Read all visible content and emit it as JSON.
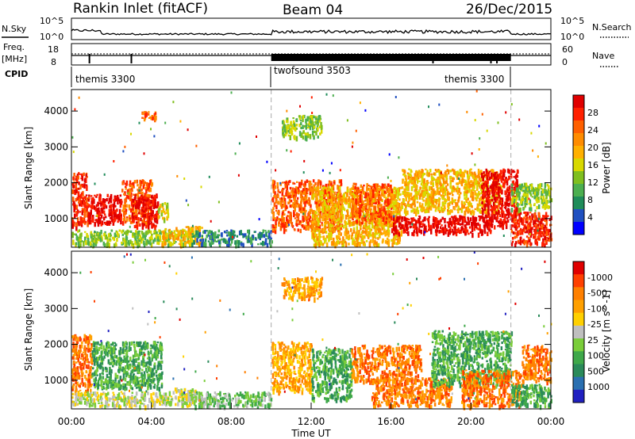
{
  "header": {
    "title": "Rankin Inlet (fitACF)",
    "beam": "Beam 04",
    "date": "26/Dec/2015"
  },
  "top_panels": {
    "nsky_label": "N.Sky",
    "nsearch_label": "N.Search",
    "nsky_ticks": [
      "10^5",
      "10^0"
    ],
    "nsky_right_ticks": [
      "10^5",
      "10^0"
    ],
    "freq_label": "Freq.",
    "freq_unit": "[MHz]",
    "freq_ticks": [
      "18",
      "8"
    ],
    "nave_label": "Nave",
    "nave_ticks": [
      "60",
      "0"
    ],
    "cpid_label": "CPID",
    "cpid_segments": [
      {
        "label": "themis 3300",
        "start_h": 0.0,
        "end_h": 10.0
      },
      {
        "label": "twofsound 3503",
        "start_h": 10.0,
        "end_h": 22.0
      },
      {
        "label": "themis 3300",
        "start_h": 22.0,
        "end_h": 24.0
      }
    ]
  },
  "chart_data": [
    {
      "type": "heatmap",
      "name": "power",
      "xlabel": "",
      "ylabel": "Slant Range [km]",
      "x_range_hours": [
        0,
        24
      ],
      "ylim": [
        200,
        4600
      ],
      "ytick_values": [
        1000,
        2000,
        3000,
        4000
      ],
      "ytick_labels": [
        "1000",
        "2000",
        "3000",
        "4000"
      ],
      "colorbar": {
        "label": "Power [dB]",
        "tick_labels": [
          "4",
          "8",
          "12",
          "16",
          "20",
          "24",
          "28"
        ],
        "colors": [
          "#0000ff",
          "#2050c0",
          "#1f8c5a",
          "#4caf50",
          "#7fbf1f",
          "#d8d800",
          "#ffb000",
          "#ff8c00",
          "#ff6000",
          "#ff2000",
          "#e00000"
        ]
      },
      "clusters": [
        {
          "x": [
            0.0,
            0.8
          ],
          "y": [
            800,
            2300
          ],
          "level": 9
        },
        {
          "x": [
            0.8,
            2.5
          ],
          "y": [
            900,
            1700
          ],
          "level": 10
        },
        {
          "x": [
            2.5,
            4.0
          ],
          "y": [
            900,
            2100
          ],
          "level": 8
        },
        {
          "x": [
            3.0,
            4.3
          ],
          "y": [
            800,
            1700
          ],
          "level": 10
        },
        {
          "x": [
            4.3,
            4.8
          ],
          "y": [
            1000,
            1500
          ],
          "level": 5
        },
        {
          "x": [
            0.0,
            6.0
          ],
          "y": [
            300,
            700
          ],
          "level": 4
        },
        {
          "x": [
            4.5,
            6.5
          ],
          "y": [
            300,
            800
          ],
          "level": 6
        },
        {
          "x": [
            6.0,
            10.0
          ],
          "y": [
            300,
            700
          ],
          "level": 2
        },
        {
          "x": [
            3.5,
            4.2
          ],
          "y": [
            3800,
            4000
          ],
          "level": 8
        },
        {
          "x": [
            10.0,
            13.5
          ],
          "y": [
            700,
            2100
          ],
          "level": 8
        },
        {
          "x": [
            10.5,
            12.5
          ],
          "y": [
            3300,
            3900
          ],
          "level": 4
        },
        {
          "x": [
            12.0,
            16.5
          ],
          "y": [
            300,
            1900
          ],
          "level": 6
        },
        {
          "x": [
            14.0,
            16.0
          ],
          "y": [
            900,
            2000
          ],
          "level": 8
        },
        {
          "x": [
            16.0,
            21.0
          ],
          "y": [
            600,
            1100
          ],
          "level": 10
        },
        {
          "x": [
            16.5,
            21.5
          ],
          "y": [
            1200,
            2400
          ],
          "level": 6
        },
        {
          "x": [
            20.5,
            22.3
          ],
          "y": [
            800,
            2400
          ],
          "level": 10
        },
        {
          "x": [
            22.0,
            24.0
          ],
          "y": [
            300,
            1200
          ],
          "level": 9
        },
        {
          "x": [
            22.0,
            24.0
          ],
          "y": [
            1300,
            2000
          ],
          "level": 4
        }
      ]
    },
    {
      "type": "heatmap",
      "name": "velocity",
      "xlabel": "Time UT",
      "ylabel": "Slant Range [km]",
      "x_range_hours": [
        0,
        24
      ],
      "ylim": [
        200,
        4600
      ],
      "xtick_values": [
        0,
        4,
        8,
        12,
        16,
        20,
        24
      ],
      "xtick_labels": [
        "00:00",
        "04:00",
        "08:00",
        "12:00",
        "16:00",
        "20:00",
        "00:00"
      ],
      "ytick_values": [
        1000,
        2000,
        3000,
        4000
      ],
      "ytick_labels": [
        "1000",
        "2000",
        "3000",
        "4000"
      ],
      "colorbar": {
        "label": "Velocity [m s^-1]",
        "tick_labels": [
          "1000",
          "500",
          "100",
          "25",
          "-25",
          "-100",
          "-500",
          "-1000"
        ],
        "colors": [
          "#2020c0",
          "#2a6fb0",
          "#2a8a5a",
          "#3fa84a",
          "#7acd3a",
          "#bfbfbf",
          "#ffd000",
          "#ffa000",
          "#ff8000",
          "#ff4000",
          "#e00000"
        ]
      },
      "clusters": [
        {
          "x": [
            0.0,
            1.0
          ],
          "y": [
            700,
            2300
          ],
          "level": 8
        },
        {
          "x": [
            1.0,
            4.5
          ],
          "y": [
            800,
            2100
          ],
          "level": 3
        },
        {
          "x": [
            0.0,
            5.0
          ],
          "y": [
            300,
            700
          ],
          "level": 5
        },
        {
          "x": [
            5.0,
            6.2
          ],
          "y": [
            300,
            800
          ],
          "level": 5
        },
        {
          "x": [
            6.0,
            10.0
          ],
          "y": [
            300,
            700
          ],
          "level": 4
        },
        {
          "x": [
            10.0,
            12.0
          ],
          "y": [
            700,
            2100
          ],
          "level": 7
        },
        {
          "x": [
            12.0,
            14.0
          ],
          "y": [
            500,
            1900
          ],
          "level": 3
        },
        {
          "x": [
            14.0,
            17.5
          ],
          "y": [
            1000,
            2000
          ],
          "level": 8
        },
        {
          "x": [
            15.0,
            19.0
          ],
          "y": [
            300,
            1100
          ],
          "level": 8
        },
        {
          "x": [
            18.0,
            22.0
          ],
          "y": [
            900,
            2400
          ],
          "level": 3
        },
        {
          "x": [
            19.5,
            22.5
          ],
          "y": [
            300,
            1300
          ],
          "level": 8
        },
        {
          "x": [
            22.0,
            24.0
          ],
          "y": [
            300,
            900
          ],
          "level": 3
        },
        {
          "x": [
            22.5,
            24.0
          ],
          "y": [
            1000,
            2000
          ],
          "level": 8
        },
        {
          "x": [
            10.5,
            12.5
          ],
          "y": [
            3300,
            3900
          ],
          "level": 7
        }
      ]
    }
  ]
}
